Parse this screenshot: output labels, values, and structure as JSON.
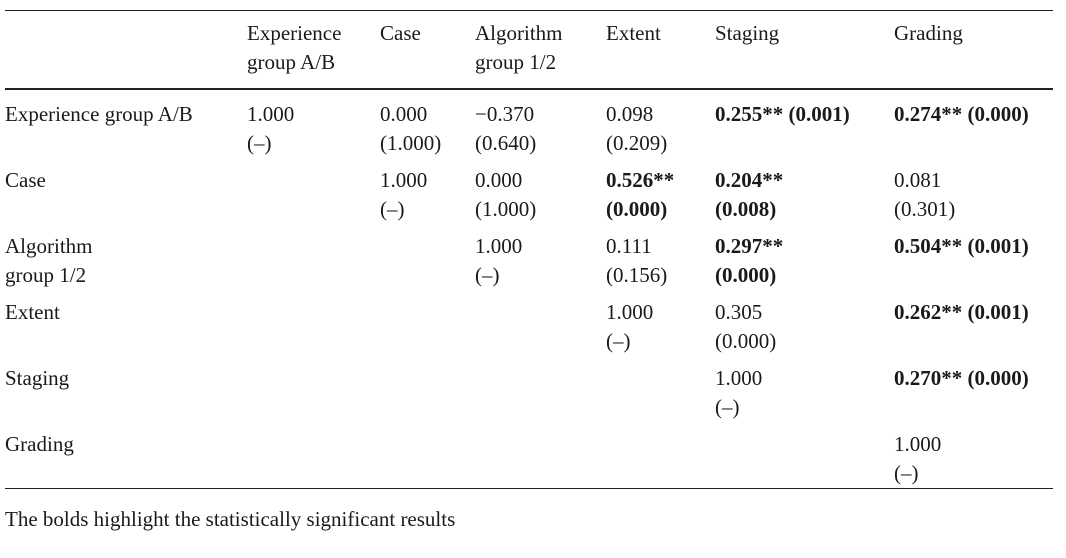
{
  "table": {
    "columns": [
      "",
      "Experience group A/B",
      "Case",
      "Algorithm group 1/2",
      "Extent",
      "Staging",
      "Grading"
    ],
    "header_lines": [
      [],
      [
        "Experience",
        "group A/B"
      ],
      [
        "Case"
      ],
      [
        "Algorithm",
        "group 1/2"
      ],
      [
        "Extent"
      ],
      [
        "Staging"
      ],
      [
        "Grading"
      ]
    ],
    "rows": [
      {
        "label_lines": [
          "Experience group A/B"
        ],
        "cells": [
          {
            "lines": [
              "1.000",
              "(–)"
            ],
            "bold": false
          },
          {
            "lines": [
              "0.000",
              "(1.000)"
            ],
            "bold": false
          },
          {
            "lines": [
              "−0.370",
              "(0.640)"
            ],
            "bold": false
          },
          {
            "lines": [
              "0.098",
              "(0.209)"
            ],
            "bold": false
          },
          {
            "lines": [
              "0.255** (0.001)"
            ],
            "bold": true
          },
          {
            "lines": [
              "0.274** (0.000)"
            ],
            "bold": true
          }
        ]
      },
      {
        "label_lines": [
          "Case"
        ],
        "cells": [
          {
            "lines": [],
            "bold": false
          },
          {
            "lines": [
              "1.000",
              "(–)"
            ],
            "bold": false
          },
          {
            "lines": [
              "0.000",
              "(1.000)"
            ],
            "bold": false
          },
          {
            "lines": [
              "0.526**",
              "(0.000)"
            ],
            "bold": true
          },
          {
            "lines": [
              "0.204**",
              "(0.008)"
            ],
            "bold": true
          },
          {
            "lines": [
              "0.081",
              "(0.301)"
            ],
            "bold": false
          }
        ]
      },
      {
        "label_lines": [
          "Algorithm",
          "group 1/2"
        ],
        "cells": [
          {
            "lines": [],
            "bold": false
          },
          {
            "lines": [],
            "bold": false
          },
          {
            "lines": [
              "1.000",
              "(–)"
            ],
            "bold": false
          },
          {
            "lines": [
              "0.111",
              "(0.156)"
            ],
            "bold": false
          },
          {
            "lines": [
              "0.297**",
              "(0.000)"
            ],
            "bold": true
          },
          {
            "lines": [
              "0.504** (0.001)"
            ],
            "bold": true
          }
        ]
      },
      {
        "label_lines": [
          "Extent"
        ],
        "cells": [
          {
            "lines": [],
            "bold": false
          },
          {
            "lines": [],
            "bold": false
          },
          {
            "lines": [],
            "bold": false
          },
          {
            "lines": [
              "1.000",
              "(–)"
            ],
            "bold": false
          },
          {
            "lines": [
              "0.305",
              "(0.000)"
            ],
            "bold": false
          },
          {
            "lines": [
              "0.262** (0.001)"
            ],
            "bold": true
          }
        ]
      },
      {
        "label_lines": [
          "Staging"
        ],
        "cells": [
          {
            "lines": [],
            "bold": false
          },
          {
            "lines": [],
            "bold": false
          },
          {
            "lines": [],
            "bold": false
          },
          {
            "lines": [],
            "bold": false
          },
          {
            "lines": [
              "1.000",
              "(–)"
            ],
            "bold": false
          },
          {
            "lines": [
              "0.270** (0.000)"
            ],
            "bold": true
          }
        ]
      },
      {
        "label_lines": [
          "Grading"
        ],
        "cells": [
          {
            "lines": [],
            "bold": false
          },
          {
            "lines": [],
            "bold": false
          },
          {
            "lines": [],
            "bold": false
          },
          {
            "lines": [],
            "bold": false
          },
          {
            "lines": [],
            "bold": false
          },
          {
            "lines": [
              "1.000",
              "(–)"
            ],
            "bold": false
          }
        ]
      }
    ]
  },
  "footnote": "The bolds highlight the statistically significant results"
}
